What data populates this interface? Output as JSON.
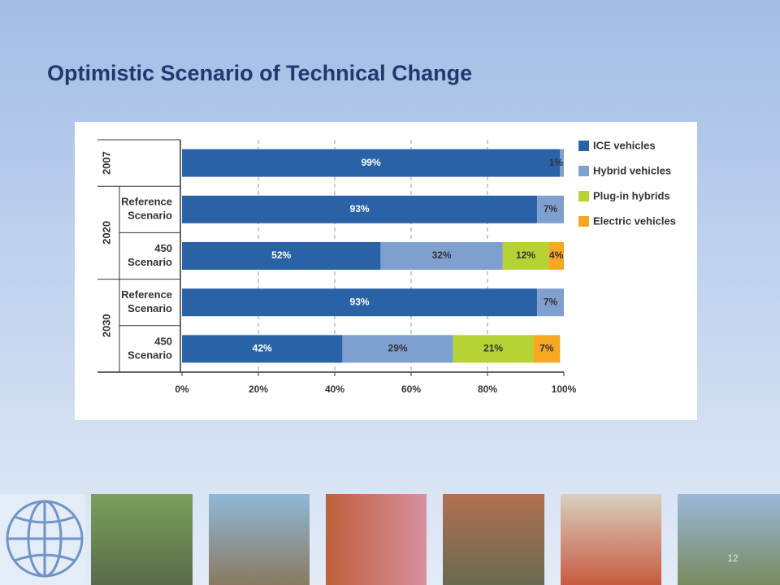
{
  "title": "Optimistic Scenario of Technical Change",
  "page_number": "12",
  "chart_data": {
    "type": "stacked-bar-horizontal",
    "groups": [
      {
        "name": "2007",
        "span": 1
      },
      {
        "name": "2020",
        "span": 2
      },
      {
        "name": "2030",
        "span": 2
      }
    ],
    "categories": [
      null,
      [
        "Reference",
        "Scenario"
      ],
      [
        "450",
        "Scenario"
      ],
      [
        "Reference",
        "Scenario"
      ],
      [
        "450",
        "Scenario"
      ]
    ],
    "series": [
      {
        "name": "ICE vehicles",
        "color": "#2a62a8",
        "values": [
          99,
          93,
          52,
          93,
          42
        ],
        "value_labels": [
          "99%",
          "93%",
          "52%",
          "93%",
          "42%"
        ]
      },
      {
        "name": "Hybrid vehicles",
        "color": "#7f9fd0",
        "values": [
          1,
          7,
          32,
          7,
          29
        ],
        "value_labels": [
          "1%",
          "7%",
          "32%",
          "7%",
          "29%"
        ]
      },
      {
        "name": "Plug-in hybrids",
        "color": "#b5d334",
        "values": [
          0,
          0,
          12,
          0,
          21
        ],
        "value_labels": [
          null,
          null,
          "12%",
          null,
          "21%"
        ]
      },
      {
        "name": "Electric vehicles",
        "color": "#f7a823",
        "values": [
          0,
          0,
          4,
          0,
          7
        ],
        "value_labels": [
          null,
          null,
          "4%",
          null,
          "7%"
        ]
      }
    ],
    "xlim": [
      0,
      100
    ],
    "xticks": [
      {
        "value": 0,
        "label": "0%"
      },
      {
        "value": 20,
        "label": "20%"
      },
      {
        "value": 40,
        "label": "40%"
      },
      {
        "value": 60,
        "label": "60%"
      },
      {
        "value": 80,
        "label": "80%"
      },
      {
        "value": 100,
        "label": "100%"
      }
    ],
    "grid": true,
    "legend": "right"
  }
}
